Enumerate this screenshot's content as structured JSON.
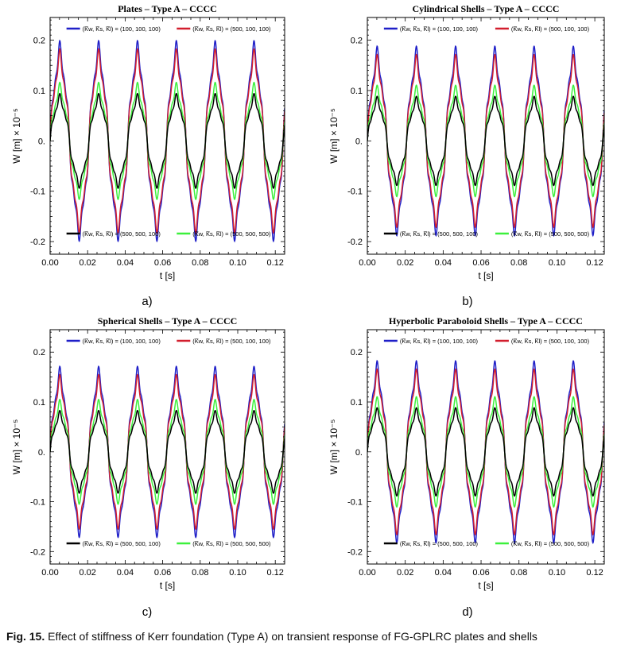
{
  "caption": {
    "label": "Fig. 15.",
    "text": " Effect of stiffness of Kerr foundation (Type A) on transient response of FG-GPLRC plates and shells"
  },
  "colors": {
    "blue": "#1f1fc8",
    "red": "#d21e2d",
    "black": "#000000",
    "green": "#3cf03c"
  },
  "chart_data": [
    {
      "type": "line",
      "panel": "a)",
      "title": "Plates – Type A – CCCC",
      "xlabel": "t [s]",
      "ylabel": "W [m] × 10⁻⁵",
      "xlim": [
        0,
        0.125
      ],
      "ylim": [
        -0.225,
        0.245
      ],
      "xticks": [
        0,
        0.02,
        0.04,
        0.06,
        0.08,
        0.1,
        0.12
      ],
      "xtick_labels": [
        "0.00",
        "0.02",
        "0.04",
        "0.06",
        "0.08",
        "0.10",
        "0.12"
      ],
      "yticks": [
        -0.2,
        -0.1,
        0,
        0.1,
        0.2
      ],
      "ytick_labels": [
        "-0.2",
        "-0.1",
        "0.",
        "0.1",
        "0.2"
      ],
      "period": 0.0207,
      "series": [
        {
          "name": "(K̅w, K̅s, K̅l) = (100, 100, 100)",
          "color": "#1f1fc8",
          "amplitude": 0.18
        },
        {
          "name": "(K̅w, K̅s, K̅l) = (500, 100, 100)",
          "color": "#d21e2d",
          "amplitude": 0.165
        },
        {
          "name": "(K̅w, K̅s, K̅l) = (500, 500, 100)",
          "color": "#000000",
          "amplitude": 0.085
        },
        {
          "name": "(K̅w, K̅s, K̅l) = (500, 500, 500)",
          "color": "#3cf03c",
          "amplitude": 0.105
        }
      ]
    },
    {
      "type": "line",
      "panel": "b)",
      "title": "Cylindrical Shells – Type A – CCCC",
      "xlabel": "t [s]",
      "ylabel": "W [m] × 10⁻⁵",
      "xlim": [
        0,
        0.125
      ],
      "ylim": [
        -0.225,
        0.245
      ],
      "xticks": [
        0,
        0.02,
        0.04,
        0.06,
        0.08,
        0.1,
        0.12
      ],
      "xtick_labels": [
        "0.00",
        "0.02",
        "0.04",
        "0.06",
        "0.08",
        "0.10",
        "0.12"
      ],
      "yticks": [
        -0.2,
        -0.1,
        0,
        0.1,
        0.2
      ],
      "ytick_labels": [
        "-0.2",
        "-0.1",
        "0.",
        "0.1",
        "0.2"
      ],
      "period": 0.0207,
      "series": [
        {
          "name": "(K̅w, K̅s, K̅l) = (100, 100, 100)",
          "color": "#1f1fc8",
          "amplitude": 0.17
        },
        {
          "name": "(K̅w, K̅s, K̅l) = (500, 100, 100)",
          "color": "#d21e2d",
          "amplitude": 0.155
        },
        {
          "name": "(K̅w, K̅s, K̅l) = (500, 500, 100)",
          "color": "#000000",
          "amplitude": 0.08
        },
        {
          "name": "(K̅w, K̅s, K̅l) = (500, 500, 500)",
          "color": "#3cf03c",
          "amplitude": 0.1
        }
      ]
    },
    {
      "type": "line",
      "panel": "c)",
      "title": "Spherical Shells – Type A – CCCC",
      "xlabel": "t [s]",
      "ylabel": "W [m] × 10⁻⁵",
      "xlim": [
        0,
        0.125
      ],
      "ylim": [
        -0.225,
        0.245
      ],
      "xticks": [
        0,
        0.02,
        0.04,
        0.06,
        0.08,
        0.1,
        0.12
      ],
      "xtick_labels": [
        "0.00",
        "0.02",
        "0.04",
        "0.06",
        "0.08",
        "0.10",
        "0.12"
      ],
      "yticks": [
        -0.2,
        -0.1,
        0,
        0.1,
        0.2
      ],
      "ytick_labels": [
        "-0.2",
        "-0.1",
        "0.",
        "0.1",
        "0.2"
      ],
      "period": 0.0207,
      "series": [
        {
          "name": "(K̅w, K̅s, K̅l) = (100, 100, 100)",
          "color": "#1f1fc8",
          "amplitude": 0.155
        },
        {
          "name": "(K̅w, K̅s, K̅l) = (500, 100, 100)",
          "color": "#d21e2d",
          "amplitude": 0.14
        },
        {
          "name": "(K̅w, K̅s, K̅l) = (500, 500, 100)",
          "color": "#000000",
          "amplitude": 0.075
        },
        {
          "name": "(K̅w, K̅s, K̅l) = (500, 500, 500)",
          "color": "#3cf03c",
          "amplitude": 0.095
        }
      ]
    },
    {
      "type": "line",
      "panel": "d)",
      "title": "Hyperbolic Paraboloid Shells – Type A – CCCC",
      "xlabel": "t [s]",
      "ylabel": "W [m] × 10⁻⁵",
      "xlim": [
        0,
        0.125
      ],
      "ylim": [
        -0.225,
        0.245
      ],
      "xticks": [
        0,
        0.02,
        0.04,
        0.06,
        0.08,
        0.1,
        0.12
      ],
      "xtick_labels": [
        "0.00",
        "0.02",
        "0.04",
        "0.06",
        "0.08",
        "0.10",
        "0.12"
      ],
      "yticks": [
        -0.2,
        -0.1,
        0,
        0.1,
        0.2
      ],
      "ytick_labels": [
        "-0.2",
        "-0.1",
        "0.",
        "0.1",
        "0.2"
      ],
      "period": 0.0207,
      "series": [
        {
          "name": "(K̅w, K̅s, K̅l) = (100, 100, 100)",
          "color": "#1f1fc8",
          "amplitude": 0.165
        },
        {
          "name": "(K̅w, K̅s, K̅l) = (500, 100, 100)",
          "color": "#d21e2d",
          "amplitude": 0.15
        },
        {
          "name": "(K̅w, K̅s, K̅l) = (500, 500, 100)",
          "color": "#000000",
          "amplitude": 0.08
        },
        {
          "name": "(K̅w, K̅s, K̅l) = (500, 500, 500)",
          "color": "#3cf03c",
          "amplitude": 0.1
        }
      ]
    }
  ]
}
